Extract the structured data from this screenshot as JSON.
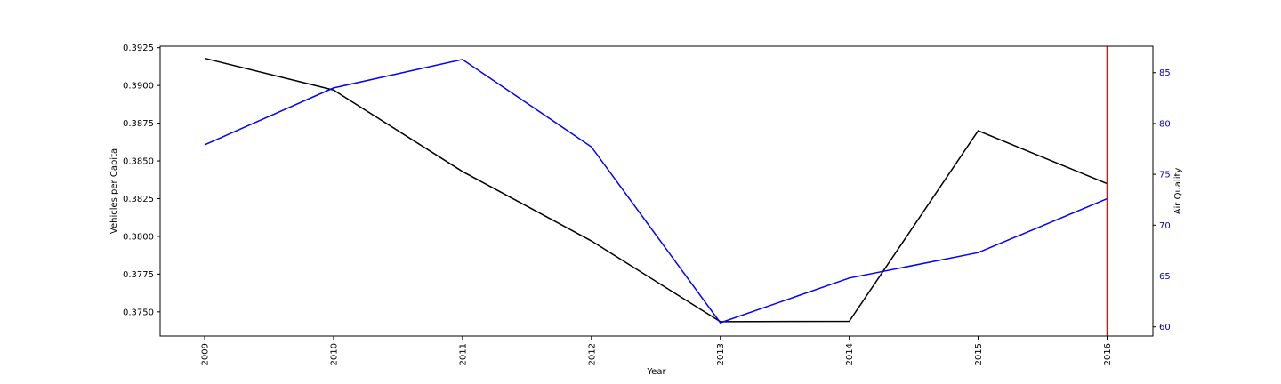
{
  "chart_data": {
    "type": "line",
    "x": [
      "2009",
      "2010",
      "2011",
      "2012",
      "2013",
      "2014",
      "2015",
      "2016"
    ],
    "xlabel": "Year",
    "ylabel_left": "Vehicles per Capita",
    "ylabel_right": "Air Quality",
    "ylim_left": [
      0.3734,
      0.3926
    ],
    "ylim_right": [
      59.1,
      87.6
    ],
    "yticks_left": [
      "0.3750",
      "0.3775",
      "0.3800",
      "0.3825",
      "0.3850",
      "0.3875",
      "0.3900",
      "0.3925"
    ],
    "yticks_right": [
      "60",
      "65",
      "70",
      "75",
      "80",
      "85"
    ],
    "series": [
      {
        "axis": "left",
        "color": "#000000",
        "values": [
          0.3918,
          0.3897,
          0.3843,
          0.3797,
          0.37435,
          0.37437,
          0.387,
          0.3835
        ]
      },
      {
        "axis": "right",
        "color": "#0000ff",
        "values": [
          77.9,
          83.5,
          86.3,
          77.7,
          60.4,
          64.8,
          67.3,
          72.6
        ]
      }
    ],
    "vline": {
      "x": "2016",
      "color": "#ff0000"
    },
    "grid": false,
    "right_tick_color": "#0000cc"
  }
}
